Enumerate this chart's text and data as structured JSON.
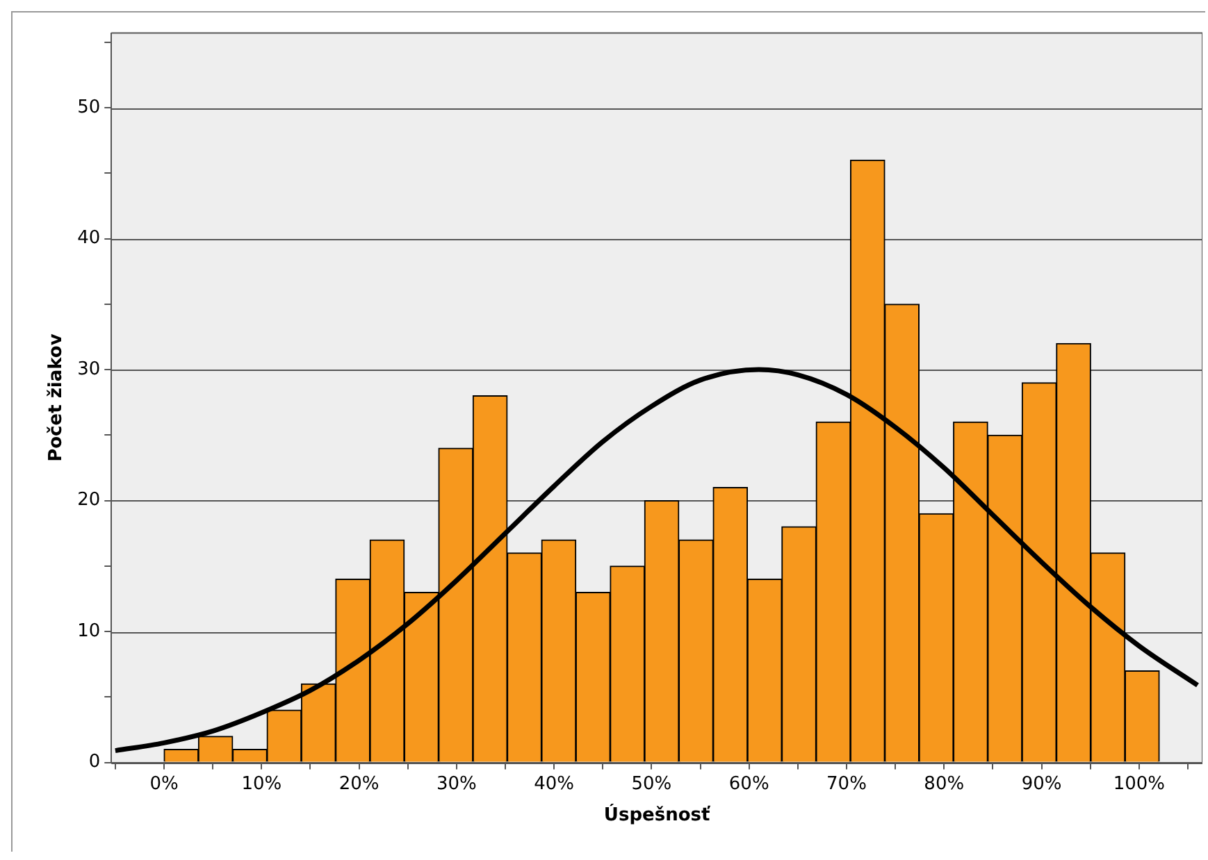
{
  "chart_data": {
    "type": "histogram",
    "xlabel": "Úspešnosť",
    "ylabel": "Počet žiakov",
    "bins": [
      0,
      3.52,
      7.04,
      10.56,
      14.08,
      17.6,
      21.12,
      24.64,
      28.16,
      31.68,
      35.2,
      38.72,
      42.24,
      45.76,
      49.28,
      52.8,
      56.32,
      59.84,
      63.36,
      66.88,
      70.4,
      73.92,
      77.44,
      80.96,
      84.48,
      88,
      91.52,
      95.04,
      98.56,
      102.08
    ],
    "values": [
      1,
      2,
      1,
      4,
      6,
      14,
      17,
      13,
      24,
      28,
      16,
      17,
      13,
      15,
      20,
      17,
      21,
      14,
      18,
      26,
      46,
      35,
      19,
      26,
      25,
      29,
      32,
      16,
      7
    ],
    "color": "#f7981d",
    "series": [
      {
        "type": "line",
        "color": "#000000",
        "x": [
          -5,
          0,
          5,
          10,
          15,
          20,
          25,
          30,
          35,
          40,
          45,
          50,
          55,
          61,
          65,
          70,
          75,
          80,
          85,
          90,
          95,
          100,
          106
        ],
        "values": [
          0.9,
          1.5,
          2.4,
          3.8,
          5.5,
          7.8,
          10.6,
          13.9,
          17.5,
          21.1,
          24.5,
          27.2,
          29.2,
          30,
          29.6,
          28.1,
          25.6,
          22.5,
          18.9,
          15.3,
          11.9,
          8.9,
          5.9
        ]
      }
    ],
    "marker": "none",
    "line_style": "solid",
    "xlim": [
      -5.4,
      106.5
    ],
    "ylim": [
      0,
      55.7
    ],
    "xticks": [
      {
        "value": -5,
        "label": null
      },
      {
        "value": 0,
        "label": "0%"
      },
      {
        "value": 5,
        "label": null
      },
      {
        "value": 10,
        "label": "10%"
      },
      {
        "value": 15,
        "label": null
      },
      {
        "value": 20,
        "label": "20%"
      },
      {
        "value": 25,
        "label": null
      },
      {
        "value": 30,
        "label": "30%"
      },
      {
        "value": 35,
        "label": null
      },
      {
        "value": 40,
        "label": "40%"
      },
      {
        "value": 45,
        "label": null
      },
      {
        "value": 50,
        "label": "50%"
      },
      {
        "value": 55,
        "label": null
      },
      {
        "value": 60,
        "label": "60%"
      },
      {
        "value": 65,
        "label": null
      },
      {
        "value": 70,
        "label": "70%"
      },
      {
        "value": 75,
        "label": null
      },
      {
        "value": 80,
        "label": "80%"
      },
      {
        "value": 85,
        "label": null
      },
      {
        "value": 90,
        "label": "90%"
      },
      {
        "value": 95,
        "label": null
      },
      {
        "value": 100,
        "label": "100%"
      },
      {
        "value": 105,
        "label": null
      }
    ],
    "yticks": [
      0,
      {
        "value": 5,
        "label": null
      },
      10,
      {
        "value": 15,
        "label": null
      },
      20,
      {
        "value": 25,
        "label": null
      },
      30,
      {
        "value": 35,
        "label": null
      },
      40,
      {
        "value": 45,
        "label": null
      },
      50,
      {
        "value": 55,
        "label": null
      }
    ],
    "grid": "y"
  }
}
